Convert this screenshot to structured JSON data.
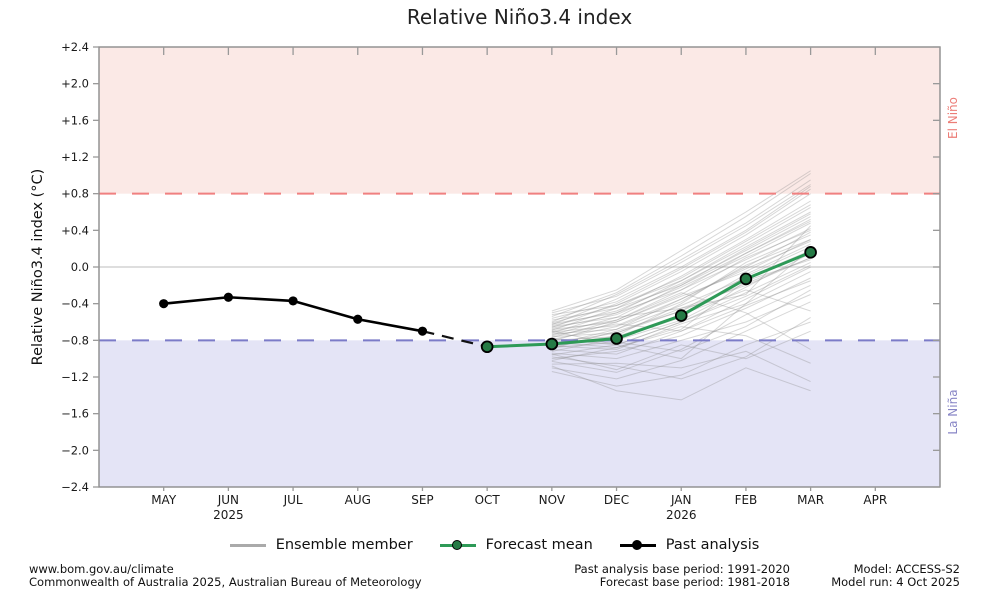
{
  "title": "Relative Niño3.4 index",
  "y_axis_label": "Relative Niño3.4 index (°C)",
  "region_labels": {
    "el_nino": "El Niño",
    "la_nina": "La Niña"
  },
  "legend": {
    "ensemble_label": "Ensemble member",
    "forecast_label": "Forecast mean",
    "past_label": "Past analysis"
  },
  "footer": {
    "left1": "www.bom.gov.au/climate",
    "left2": "Commonwealth of Australia 2025, Australian Bureau of Meteorology",
    "center1": "Past analysis base period: 1991-2020",
    "center2": "Forecast base period: 1981-2018",
    "right1": "Model: ACCESS-S2",
    "right2": "Model run: 4 Oct 2025"
  },
  "colors": {
    "el_nino_band": "#fbe9e6",
    "la_nina_band": "#e4e4f6",
    "el_nino_line": "#f08080",
    "la_nina_line": "#7b7bc8",
    "zero_line": "#c9c9c9",
    "ensemble": "#8c8c8c",
    "forecast_line": "#2e9a57",
    "forecast_marker": "#257a45",
    "past": "#000000",
    "axis": "#8c8c8c",
    "tick": "#999999",
    "tick_label": "#1a1a1a"
  },
  "chart_data": {
    "type": "line",
    "title": "Relative Niño3.4 index",
    "ylabel": "Relative Niño3.4 index (°C)",
    "ylim": [
      -2.4,
      2.4
    ],
    "ytick_step": 0.4,
    "ytick_labels": [
      "+2.4",
      "+2.0",
      "+1.6",
      "+1.2",
      "+0.8",
      "+0.4",
      "0.0",
      "−0.4",
      "−0.8",
      "−1.2",
      "−1.6",
      "−2.0",
      "−2.4"
    ],
    "months": [
      "MAY",
      "JUN",
      "JUL",
      "AUG",
      "SEP",
      "OCT",
      "NOV",
      "DEC",
      "JAN",
      "FEB",
      "MAR",
      "APR"
    ],
    "year_labels": [
      {
        "month": "JUN",
        "year": "2025"
      },
      {
        "month": "JAN",
        "year": "2026"
      }
    ],
    "thresholds": {
      "el_nino": 0.8,
      "la_nina": -0.8,
      "zero": 0.0
    },
    "grid": false,
    "legend_position": "bottom",
    "series": [
      {
        "name": "Past analysis",
        "months": [
          "MAY",
          "JUN",
          "JUL",
          "AUG",
          "SEP"
        ],
        "values": [
          -0.4,
          -0.33,
          -0.37,
          -0.57,
          -0.7
        ]
      },
      {
        "name": "Forecast mean",
        "months": [
          "OCT",
          "NOV",
          "DEC",
          "JAN",
          "FEB",
          "MAR"
        ],
        "values": [
          -0.87,
          -0.84,
          -0.78,
          -0.53,
          -0.13,
          0.16
        ]
      }
    ],
    "connector": {
      "from": {
        "month": "SEP",
        "value": -0.7
      },
      "to": {
        "month": "OCT",
        "value": -0.87
      }
    },
    "ensemble_members": {
      "name": "Ensemble member",
      "months": [
        "NOV",
        "DEC",
        "JAN",
        "FEB",
        "MAR"
      ],
      "series": [
        [
          -1.14,
          -1.3,
          -1.18,
          -0.85,
          -0.6
        ],
        [
          -1.1,
          -1.22,
          -1.02,
          -0.7,
          -0.38
        ],
        [
          -1.06,
          -1.05,
          -1.1,
          -0.92,
          -1.25
        ],
        [
          -1.03,
          -1.15,
          -0.9,
          -0.52,
          -0.2
        ],
        [
          -1.0,
          -0.92,
          -0.75,
          -0.45,
          -0.12
        ],
        [
          -0.98,
          -1.08,
          -1.22,
          -0.98,
          -0.55
        ],
        [
          -0.96,
          -0.85,
          -0.6,
          -0.28,
          0.05
        ],
        [
          -0.94,
          -1.0,
          -0.8,
          -0.6,
          -0.3
        ],
        [
          -0.92,
          -0.78,
          -0.55,
          -0.1,
          0.22
        ],
        [
          -0.9,
          -0.95,
          -0.7,
          -0.35,
          0.0
        ],
        [
          -0.89,
          -0.7,
          -0.48,
          -0.18,
          0.1
        ],
        [
          -0.88,
          -0.82,
          -0.92,
          -0.65,
          -0.25
        ],
        [
          -0.87,
          -0.75,
          -0.4,
          0.05,
          0.35
        ],
        [
          -0.86,
          -0.9,
          -0.62,
          -0.4,
          -0.05
        ],
        [
          -0.85,
          -0.68,
          -0.35,
          -0.02,
          0.28
        ],
        [
          -0.84,
          -0.8,
          -0.58,
          -0.22,
          0.15
        ],
        [
          -0.83,
          -0.72,
          -0.45,
          -0.3,
          0.45
        ],
        [
          -0.82,
          -0.88,
          -0.68,
          -0.15,
          0.08
        ],
        [
          -0.81,
          -0.6,
          -0.3,
          0.1,
          0.4
        ],
        [
          -0.8,
          -0.76,
          -0.52,
          -0.25,
          -0.48
        ],
        [
          -0.79,
          -0.65,
          -0.38,
          0.02,
          0.3
        ],
        [
          -0.78,
          -0.85,
          -0.6,
          -0.32,
          0.02
        ],
        [
          -0.77,
          -0.58,
          -0.25,
          0.15,
          0.52
        ],
        [
          -0.76,
          -0.72,
          -0.48,
          -0.08,
          0.25
        ],
        [
          -0.75,
          -0.62,
          -0.7,
          -0.42,
          -0.15
        ],
        [
          -0.74,
          -0.55,
          -0.2,
          0.2,
          0.58
        ],
        [
          -0.73,
          -0.68,
          -0.42,
          -0.12,
          0.18
        ],
        [
          -0.72,
          -0.5,
          -0.15,
          0.25,
          0.65
        ],
        [
          -0.71,
          -0.64,
          -0.35,
          0.0,
          0.38
        ],
        [
          -0.7,
          -0.58,
          -0.28,
          -0.5,
          -0.9
        ],
        [
          -0.69,
          -0.45,
          -0.1,
          0.3,
          0.72
        ],
        [
          -0.68,
          -0.6,
          -0.32,
          -0.05,
          0.3
        ],
        [
          -0.67,
          -0.52,
          -0.22,
          0.12,
          0.48
        ],
        [
          -0.66,
          -0.4,
          -0.05,
          0.35,
          0.8
        ],
        [
          -0.65,
          -0.55,
          -0.45,
          -0.2,
          0.1
        ],
        [
          -0.64,
          -0.48,
          -0.18,
          0.18,
          0.55
        ],
        [
          -0.63,
          -0.35,
          0.0,
          0.4,
          0.88
        ],
        [
          -0.62,
          -0.5,
          -0.25,
          0.08,
          0.42
        ],
        [
          -0.61,
          -0.42,
          -0.12,
          0.28,
          0.68
        ],
        [
          -0.6,
          -0.3,
          0.08,
          0.48,
          0.95
        ],
        [
          -0.58,
          -0.45,
          -0.2,
          0.15,
          0.5
        ],
        [
          -0.56,
          -0.38,
          -0.02,
          0.38,
          0.85
        ],
        [
          -0.54,
          -0.28,
          0.12,
          0.55,
          1.02
        ],
        [
          -0.52,
          -0.42,
          -0.15,
          0.22,
          0.6
        ],
        [
          -0.5,
          -0.32,
          0.05,
          0.45,
          0.9
        ],
        [
          -0.48,
          -0.25,
          0.18,
          0.6,
          1.05
        ],
        [
          -1.08,
          -1.35,
          -1.45,
          -1.1,
          -1.35
        ],
        [
          -0.95,
          -1.12,
          -0.85,
          -1.0,
          -0.7
        ],
        [
          -1.02,
          -0.88,
          -0.65,
          -0.75,
          -1.05
        ],
        [
          -0.7,
          -0.85,
          -1.0,
          -0.4,
          0.2
        ]
      ]
    }
  }
}
